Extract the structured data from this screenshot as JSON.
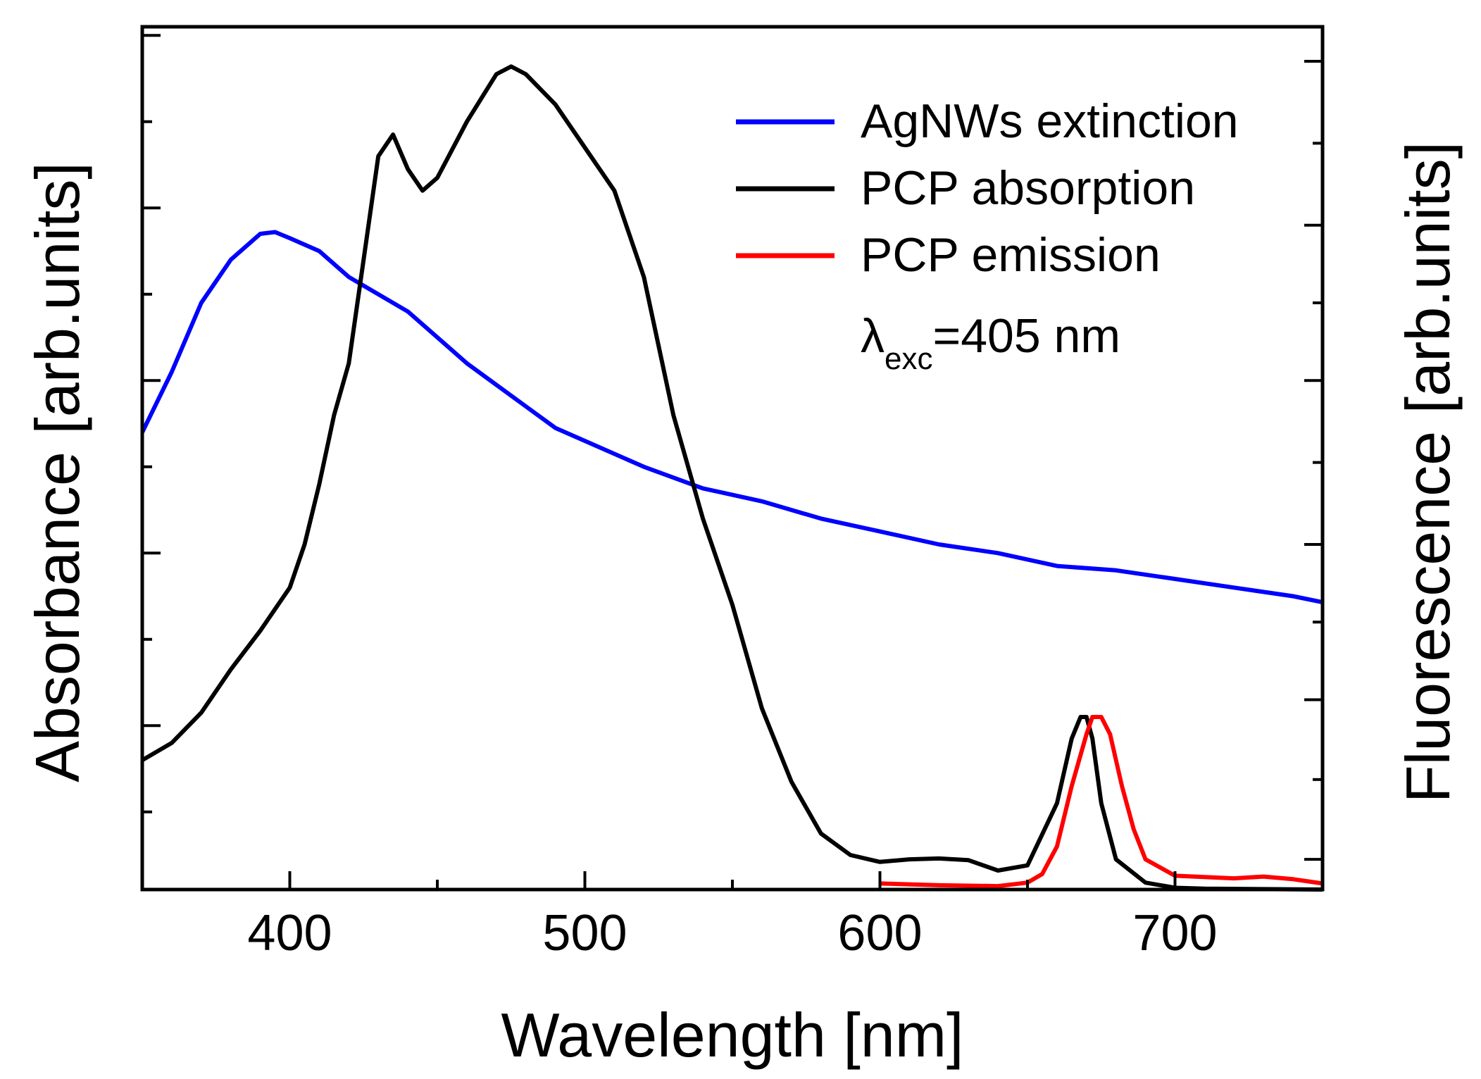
{
  "chart_data": {
    "type": "line",
    "title": "",
    "xlabel": "Wavelength [nm]",
    "ylabel_left": "Absorbance [arb.units]",
    "ylabel_right": "Fluorescence [arb.units]",
    "xlim": [
      350,
      750
    ],
    "ylim": [
      0,
      1.0
    ],
    "x_ticks": [
      400,
      500,
      600,
      700
    ],
    "x_tick_labels": [
      "400",
      "500",
      "600",
      "700"
    ],
    "left_y_ticks": [
      0.19,
      0.39,
      0.59,
      0.79,
      0.99
    ],
    "right_y_ticks": [
      0.035,
      0.22,
      0.4,
      0.59,
      0.77,
      0.96
    ],
    "y_tick_labels_shown": false,
    "annotation": {
      "symbol": "λ",
      "subscript": "exc",
      "text": "=405 nm"
    },
    "legend": {
      "placement": "top-right"
    },
    "series": [
      {
        "name": "AgNWs extinction",
        "color": "#0000ff",
        "axis": "left",
        "x": [
          350,
          360,
          370,
          380,
          390,
          395,
          400,
          410,
          420,
          430,
          440,
          450,
          460,
          470,
          480,
          490,
          500,
          520,
          540,
          560,
          580,
          600,
          620,
          640,
          660,
          680,
          700,
          720,
          740,
          750
        ],
        "y": [
          0.53,
          0.6,
          0.68,
          0.73,
          0.76,
          0.762,
          0.755,
          0.74,
          0.71,
          0.69,
          0.67,
          0.64,
          0.61,
          0.585,
          0.56,
          0.535,
          0.52,
          0.49,
          0.465,
          0.45,
          0.43,
          0.415,
          0.4,
          0.39,
          0.375,
          0.37,
          0.36,
          0.35,
          0.34,
          0.333
        ]
      },
      {
        "name": "PCP absorption",
        "color": "#000000",
        "axis": "left",
        "x": [
          350,
          360,
          370,
          380,
          390,
          400,
          405,
          410,
          415,
          420,
          425,
          430,
          435,
          440,
          445,
          450,
          460,
          470,
          475,
          480,
          490,
          500,
          510,
          520,
          530,
          540,
          550,
          560,
          570,
          580,
          590,
          600,
          610,
          620,
          630,
          640,
          650,
          660,
          665,
          668,
          670,
          672,
          675,
          680,
          690,
          700,
          710,
          750
        ],
        "y": [
          0.15,
          0.17,
          0.205,
          0.255,
          0.3,
          0.35,
          0.4,
          0.47,
          0.55,
          0.61,
          0.73,
          0.85,
          0.875,
          0.835,
          0.81,
          0.825,
          0.89,
          0.945,
          0.954,
          0.945,
          0.91,
          0.86,
          0.81,
          0.71,
          0.55,
          0.43,
          0.33,
          0.21,
          0.125,
          0.065,
          0.04,
          0.032,
          0.035,
          0.036,
          0.034,
          0.022,
          0.028,
          0.1,
          0.175,
          0.2,
          0.2,
          0.175,
          0.1,
          0.035,
          0.008,
          0.002,
          0.001,
          0.0
        ]
      },
      {
        "name": "PCP emission",
        "color": "#ff0000",
        "axis": "right",
        "x": [
          600,
          620,
          640,
          650,
          655,
          660,
          665,
          670,
          672,
          675,
          678,
          682,
          686,
          690,
          700,
          720,
          730,
          740,
          750
        ],
        "y": [
          0.007,
          0.005,
          0.004,
          0.008,
          0.018,
          0.05,
          0.12,
          0.18,
          0.2,
          0.2,
          0.18,
          0.12,
          0.07,
          0.035,
          0.016,
          0.013,
          0.015,
          0.012,
          0.007
        ]
      }
    ]
  }
}
